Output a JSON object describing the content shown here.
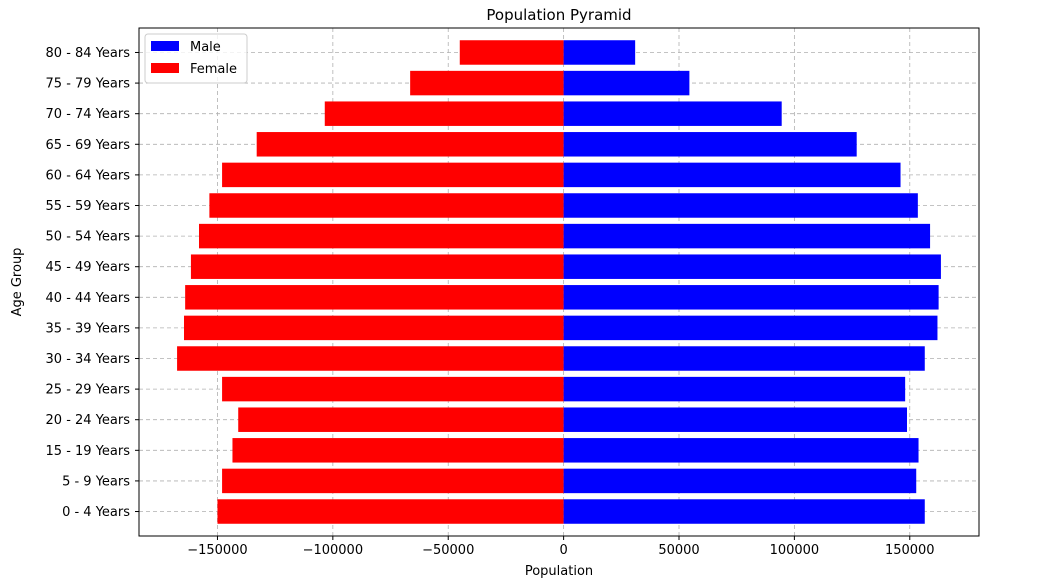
{
  "chart_data": {
    "type": "bar",
    "orientation": "horizontal",
    "title": "Population Pyramid",
    "xlabel": "Population",
    "ylabel": "Age Group",
    "categories": [
      "0 - 4 Years",
      "5 - 9 Years",
      "15 - 19 Years",
      "20 - 24 Years",
      "25 - 29 Years",
      "30 - 34 Years",
      "35 - 39 Years",
      "40 - 44 Years",
      "45 - 49 Years",
      "50 - 54 Years",
      "55 - 59 Years",
      "60 - 64 Years",
      "65 - 69 Years",
      "70 - 74 Years",
      "75 - 79 Years",
      "80 - 84 Years"
    ],
    "series": [
      {
        "name": "Male",
        "color": "#0000ff",
        "values": [
          156500,
          152800,
          153800,
          148800,
          148000,
          156500,
          162000,
          162500,
          163500,
          158800,
          153500,
          146000,
          127000,
          94500,
          54500,
          31000
        ]
      },
      {
        "name": "Female",
        "color": "#ff0000",
        "values": [
          -150000,
          -148000,
          -143500,
          -141000,
          -148000,
          -167500,
          -164500,
          -164000,
          -161500,
          -158000,
          -153500,
          -148000,
          -133000,
          -103500,
          -66500,
          -45000
        ]
      }
    ],
    "xlim": [
      -184000,
      180000
    ],
    "xticks": [
      -150000,
      -100000,
      -50000,
      0,
      50000,
      100000,
      150000
    ],
    "xtick_labels": [
      "−150000",
      "−100000",
      "−50000",
      "0",
      "50000",
      "100000",
      "150000"
    ],
    "grid": true,
    "legend": "top-left"
  }
}
